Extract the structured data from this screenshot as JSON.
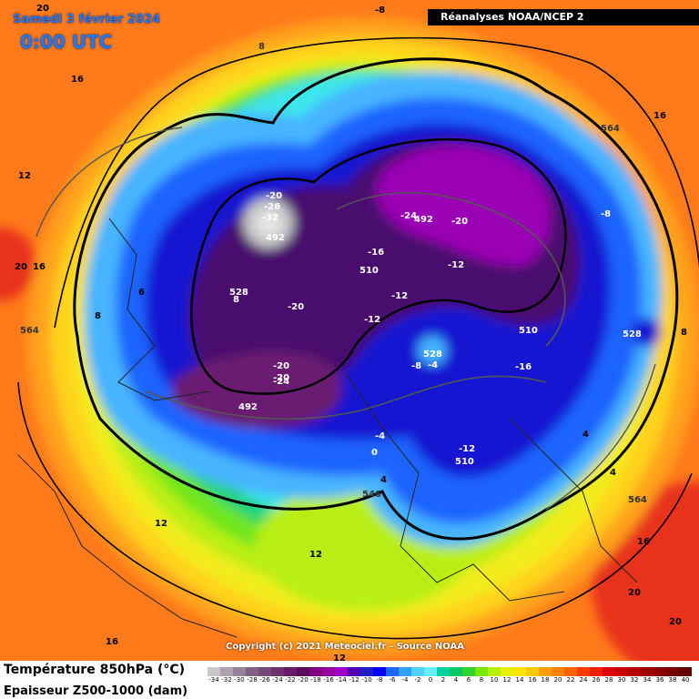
{
  "header": {
    "date": "Samedi 3 février 2024",
    "time": "0:00 UTC",
    "source": "Réanalyses NOAA/NCEP 2"
  },
  "footer": {
    "copyright": "Copyright (c) 2021 Meteociel.fr - Source NOAA",
    "legend_line1": "Température 850hPa (°C)",
    "legend_line2": "Epaisseur Z500-1000 (dam)"
  },
  "scale": {
    "labels": [
      "-34",
      "-32",
      "-30",
      "-28",
      "-26",
      "-24",
      "-22",
      "-20",
      "-18",
      "-16",
      "-14",
      "-12",
      "-10",
      "-8",
      "-6",
      "-4",
      "-2",
      "0",
      "2",
      "4",
      "6",
      "8",
      "10",
      "12",
      "14",
      "16",
      "18",
      "20",
      "22",
      "24",
      "26",
      "28",
      "30",
      "32",
      "34",
      "36",
      "38",
      "40"
    ],
    "colors": [
      "#c8c8c8",
      "#b0a0b0",
      "#988098",
      "#806080",
      "#784878",
      "#703070",
      "#681a68",
      "#5a0a5a",
      "#800080",
      "#9600a0",
      "#a000c8",
      "#5000b4",
      "#1e1ec8",
      "#0000ff",
      "#1e64ff",
      "#32a0ff",
      "#50d2ff",
      "#64f0ff",
      "#00d2a0",
      "#00c864",
      "#32d232",
      "#78e600",
      "#b4f000",
      "#e6f000",
      "#ffe600",
      "#ffc800",
      "#ffa000",
      "#ff8200",
      "#ff6400",
      "#ff3c00",
      "#f01e00",
      "#dc0000",
      "#c80000",
      "#b40000",
      "#a00000",
      "#8c0000",
      "#780000",
      "#640000"
    ]
  },
  "map_labels": {
    "temperature": [
      "20",
      "-8",
      "16",
      "16",
      "12",
      "20",
      "16",
      "6",
      "8",
      "-20",
      "-26",
      "-32",
      "8",
      "-20",
      "-24",
      "-20",
      "-16",
      "-12",
      "-20",
      "-12",
      "-8",
      "-12",
      "-20",
      "-24",
      "-8",
      "-16",
      "8",
      "4",
      "0",
      "-4",
      "4",
      "-12",
      "4",
      "12",
      "12",
      "16",
      "16",
      "20",
      "20",
      "-4",
      "12"
    ],
    "thickness": [
      "8",
      "564",
      "528",
      "492",
      "492",
      "510",
      "510",
      "528",
      "528",
      "492",
      "510",
      "564",
      "564",
      "546"
    ]
  },
  "colors": {
    "header_blue": "#1e7bff",
    "source_bg": "#000000"
  }
}
